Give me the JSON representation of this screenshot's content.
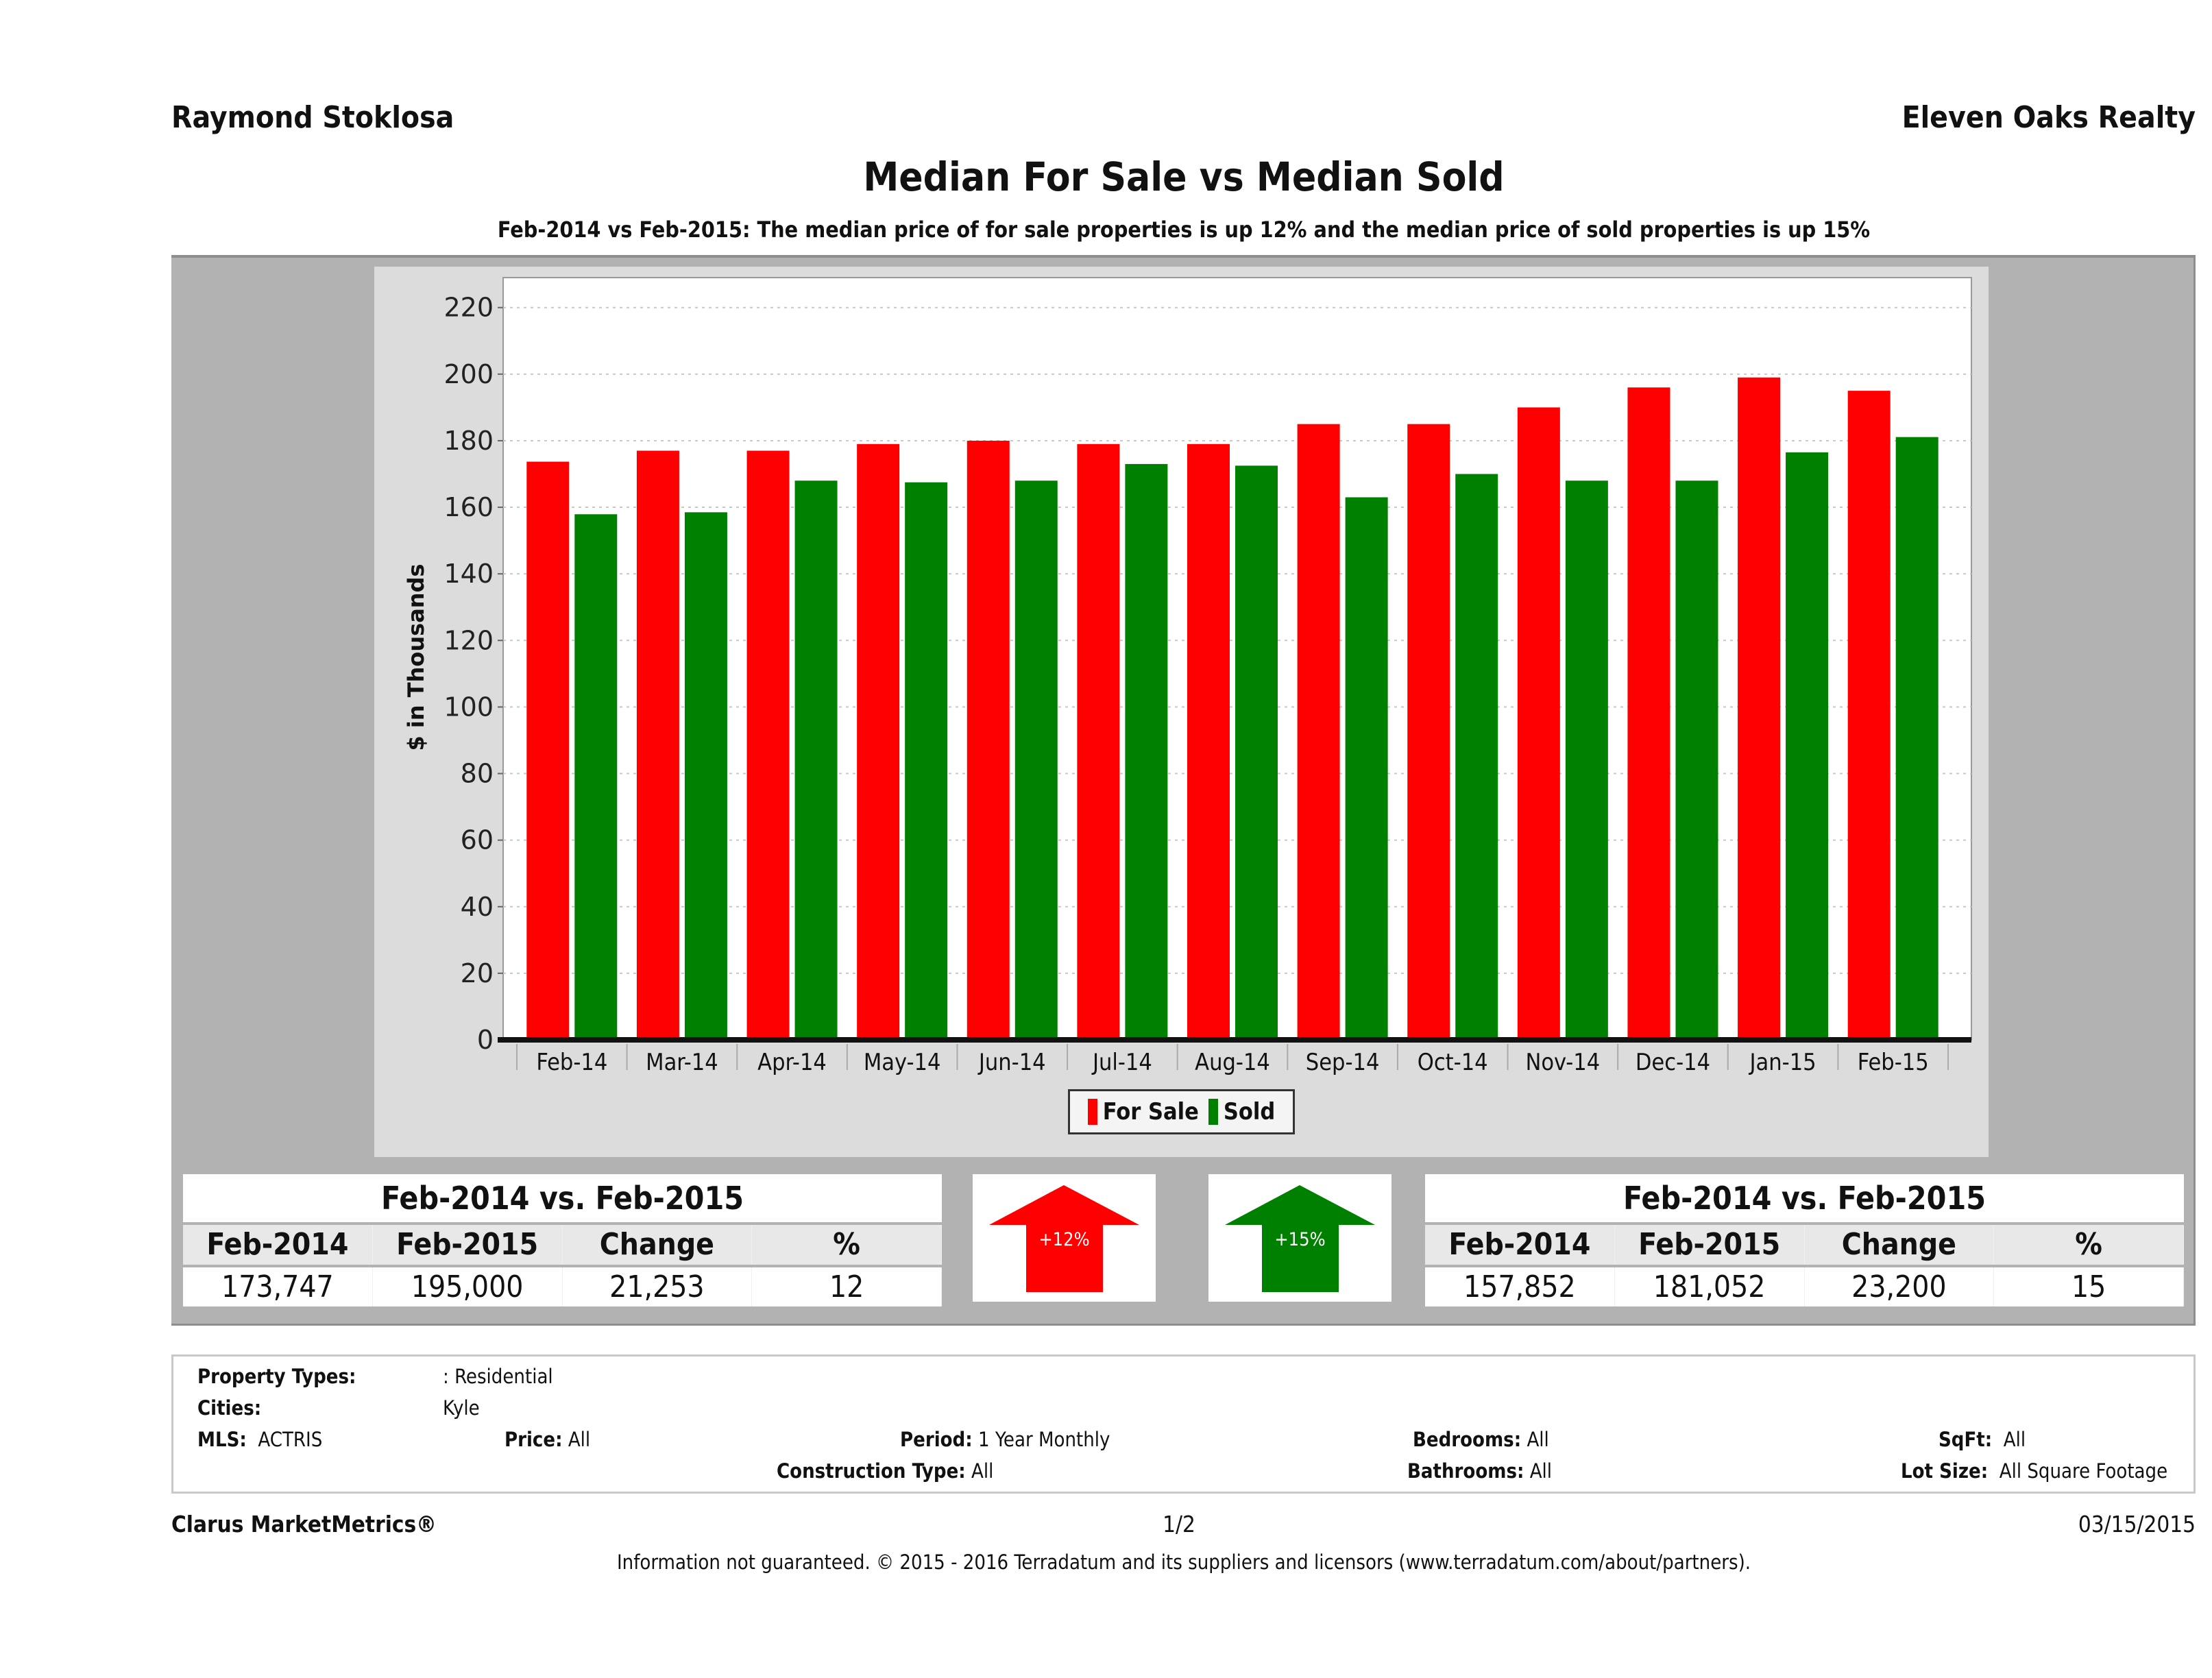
{
  "header": {
    "agent": "Raymond Stoklosa",
    "company": "Eleven Oaks Realty",
    "title": "Median For Sale vs Median Sold",
    "subtitle": "Feb-2014 vs Feb-2015: The median price of for sale properties is up 12% and the median price of sold properties is up 15%"
  },
  "chart_data": {
    "type": "bar",
    "title": "Median For Sale vs Median Sold",
    "xlabel": "",
    "ylabel": "$ in Thousands",
    "ylim": [
      0,
      229
    ],
    "yticks": [
      0,
      20,
      40,
      60,
      80,
      100,
      120,
      140,
      160,
      180,
      200,
      220
    ],
    "grid": true,
    "legend_position": "bottom",
    "categories": [
      "Feb-14",
      "Mar-14",
      "Apr-14",
      "May-14",
      "Jun-14",
      "Jul-14",
      "Aug-14",
      "Sep-14",
      "Oct-14",
      "Nov-14",
      "Dec-14",
      "Jan-15",
      "Feb-15"
    ],
    "series": [
      {
        "name": "For Sale",
        "color": "#ff0000",
        "values": [
          173.7,
          177,
          177,
          179,
          180,
          179,
          179,
          185,
          185,
          190,
          196,
          199,
          195
        ]
      },
      {
        "name": "Sold",
        "color": "#008000",
        "values": [
          157.9,
          158.5,
          168,
          167.5,
          168,
          173,
          172.5,
          163,
          170,
          168,
          168,
          176.5,
          181.1
        ]
      }
    ]
  },
  "summary": {
    "for_sale": {
      "title": "Feb-2014 vs. Feb-2015",
      "headers": [
        "Feb-2014",
        "Feb-2015",
        "Change",
        "%"
      ],
      "values": [
        "173,747",
        "195,000",
        "21,253",
        "12"
      ],
      "arrow_label": "+12%",
      "arrow_color": "#ff0000"
    },
    "sold": {
      "title": "Feb-2014 vs. Feb-2015",
      "headers": [
        "Feb-2014",
        "Feb-2015",
        "Change",
        "%"
      ],
      "values": [
        "157,852",
        "181,052",
        "23,200",
        "15"
      ],
      "arrow_label": "+15%",
      "arrow_color": "#008000"
    }
  },
  "criteria": {
    "property_types_label": "Property Types:",
    "property_types_value": ": Residential",
    "cities_label": "Cities:",
    "cities_value": "Kyle",
    "mls_label": "MLS:",
    "mls_value": "ACTRIS",
    "price_label": "Price:",
    "price_value": "All",
    "period_label": "Period:",
    "period_value": "1 Year Monthly",
    "construction_label": "Construction Type:",
    "construction_value": "All",
    "bedrooms_label": "Bedrooms:",
    "bedrooms_value": "All",
    "bathrooms_label": "Bathrooms:",
    "bathrooms_value": "All",
    "sqft_label": "SqFt:",
    "sqft_value": "All",
    "lotsize_label": "Lot Size:",
    "lotsize_value": "All Square Footage"
  },
  "footer": {
    "brand": "Clarus MarketMetrics®",
    "page": "1/2",
    "date": "03/15/2015",
    "disclaimer": "Information not guaranteed. © 2015 - 2016 Terradatum and its suppliers and licensors (www.terradatum.com/about/partners)."
  }
}
